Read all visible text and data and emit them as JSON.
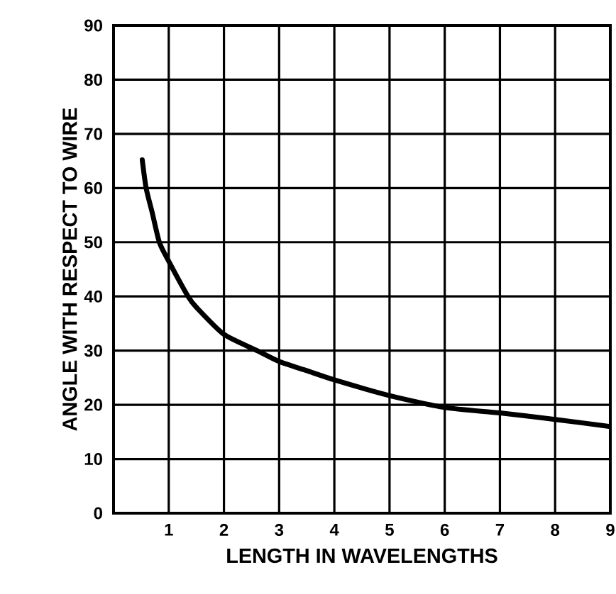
{
  "chart_data": {
    "type": "line",
    "xlabel": "LENGTH IN WAVELENGTHS",
    "ylabel": "ANGLE WITH RESPECT TO WIRE",
    "xlim": [
      0,
      9
    ],
    "ylim": [
      0,
      90
    ],
    "xticks": [
      1,
      2,
      3,
      4,
      5,
      6,
      7,
      8,
      9
    ],
    "yticks": [
      0,
      10,
      20,
      30,
      40,
      50,
      60,
      70,
      80,
      90
    ],
    "grid": true,
    "series": [
      {
        "color": "#000000",
        "x": [
          0.52,
          0.59,
          0.7,
          0.83,
          1.0,
          1.35,
          1.5,
          2.0,
          2.6,
          3.0,
          3.5,
          4.0,
          5.0,
          6.0,
          7.0,
          8.0,
          9.0
        ],
        "values": [
          65.2,
          60,
          55.5,
          50,
          46.5,
          40,
          38,
          33,
          30,
          28,
          26.3,
          24.6,
          21.7,
          19.5,
          18.5,
          17.3,
          16
        ]
      }
    ]
  }
}
